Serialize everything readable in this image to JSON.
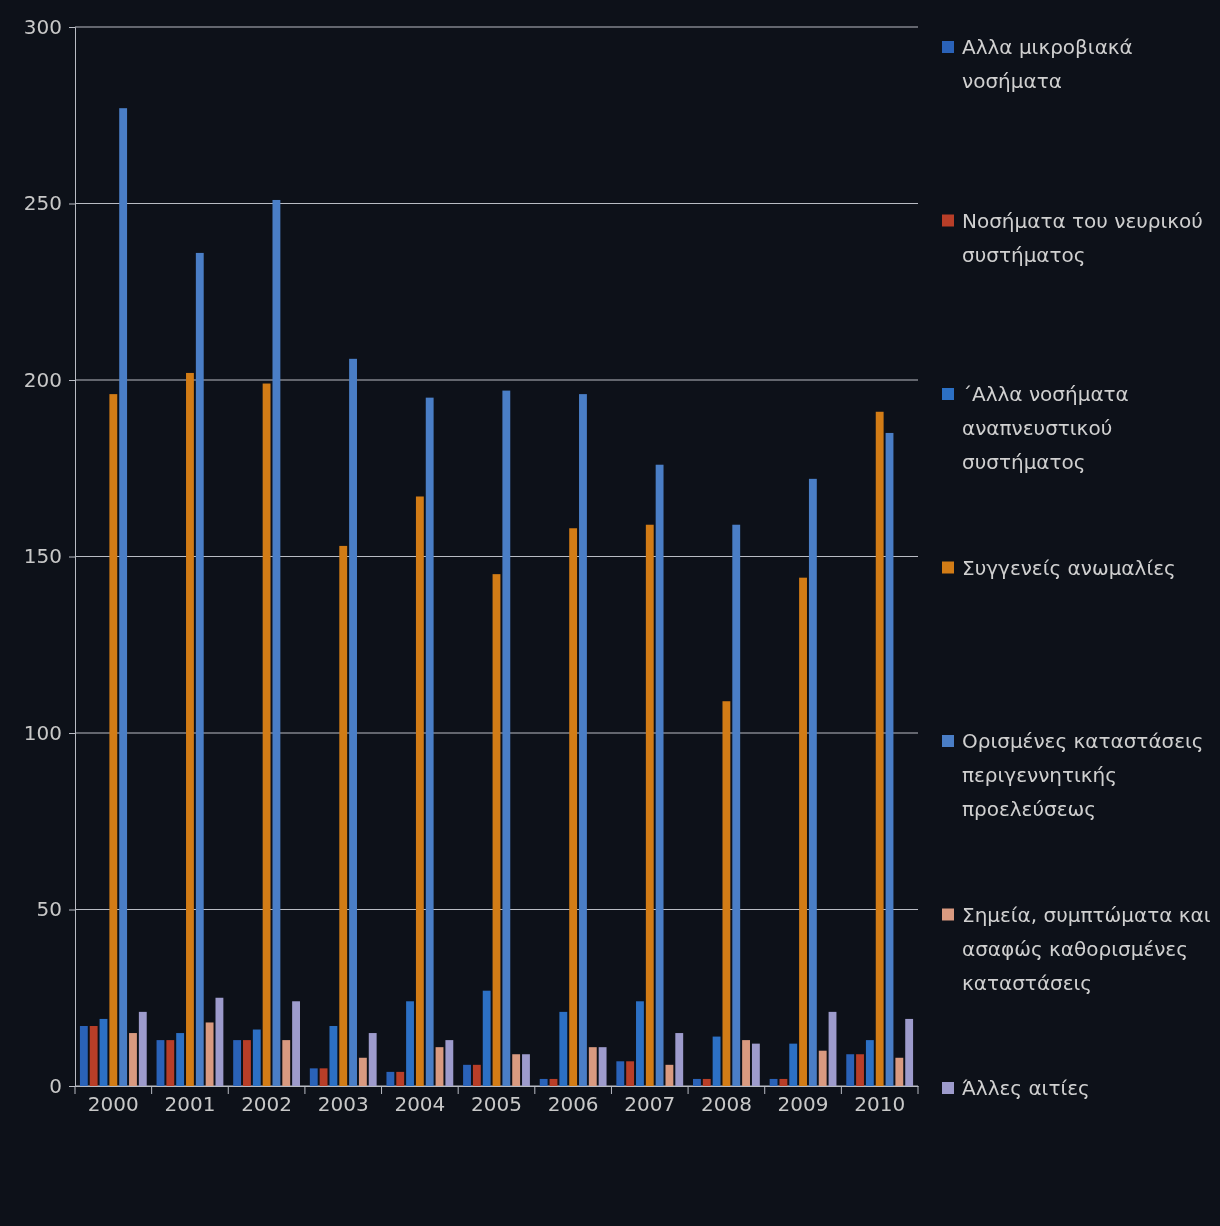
{
  "chart_data": {
    "type": "bar",
    "categories": [
      "2000",
      "2001",
      "2002",
      "2003",
      "2004",
      "2005",
      "2006",
      "2007",
      "2008",
      "2009",
      "2010"
    ],
    "series": [
      {
        "name": "Αλλα  μικροβιακά νοσήματα",
        "color": "#2a62b8",
        "values": [
          17,
          13,
          13,
          5,
          4,
          6,
          2,
          7,
          2,
          2,
          9
        ]
      },
      {
        "name": "Νοσήματα του νευρικού συστήματος",
        "color": "#b83e28",
        "values": [
          17,
          13,
          13,
          5,
          4,
          6,
          2,
          7,
          2,
          2,
          9
        ]
      },
      {
        "name": "΄Αλλα νοσήματα αναπνευστικού συστήματος",
        "color": "#2c70c4",
        "values": [
          19,
          15,
          16,
          17,
          24,
          27,
          21,
          24,
          14,
          12,
          13
        ]
      },
      {
        "name": "Συγγενείς ανωμαλίες",
        "color": "#d27c16",
        "values": [
          196,
          202,
          199,
          153,
          167,
          145,
          158,
          159,
          109,
          144,
          191
        ]
      },
      {
        "name": "Ορισμένες καταστάσεις περιγεννητικής προελεύσεως",
        "color": "#4a7ec6",
        "values": [
          277,
          236,
          251,
          206,
          195,
          197,
          196,
          176,
          159,
          172,
          185
        ]
      },
      {
        "name": "Σημεία, συμπτώματα και ασαφώς καθορισμένες καταστάσεις",
        "color": "#d99a80",
        "values": [
          15,
          18,
          13,
          8,
          11,
          9,
          11,
          6,
          13,
          10,
          8
        ]
      },
      {
        "name": "Άλλες αιτίες",
        "color": "#9d9bcc",
        "values": [
          21,
          25,
          24,
          15,
          13,
          9,
          11,
          15,
          12,
          21,
          19
        ]
      }
    ],
    "ylim": [
      0,
      300
    ],
    "yticks": [
      0,
      50,
      100,
      150,
      200,
      250,
      300
    ],
    "grid": "y",
    "legend": "right"
  }
}
